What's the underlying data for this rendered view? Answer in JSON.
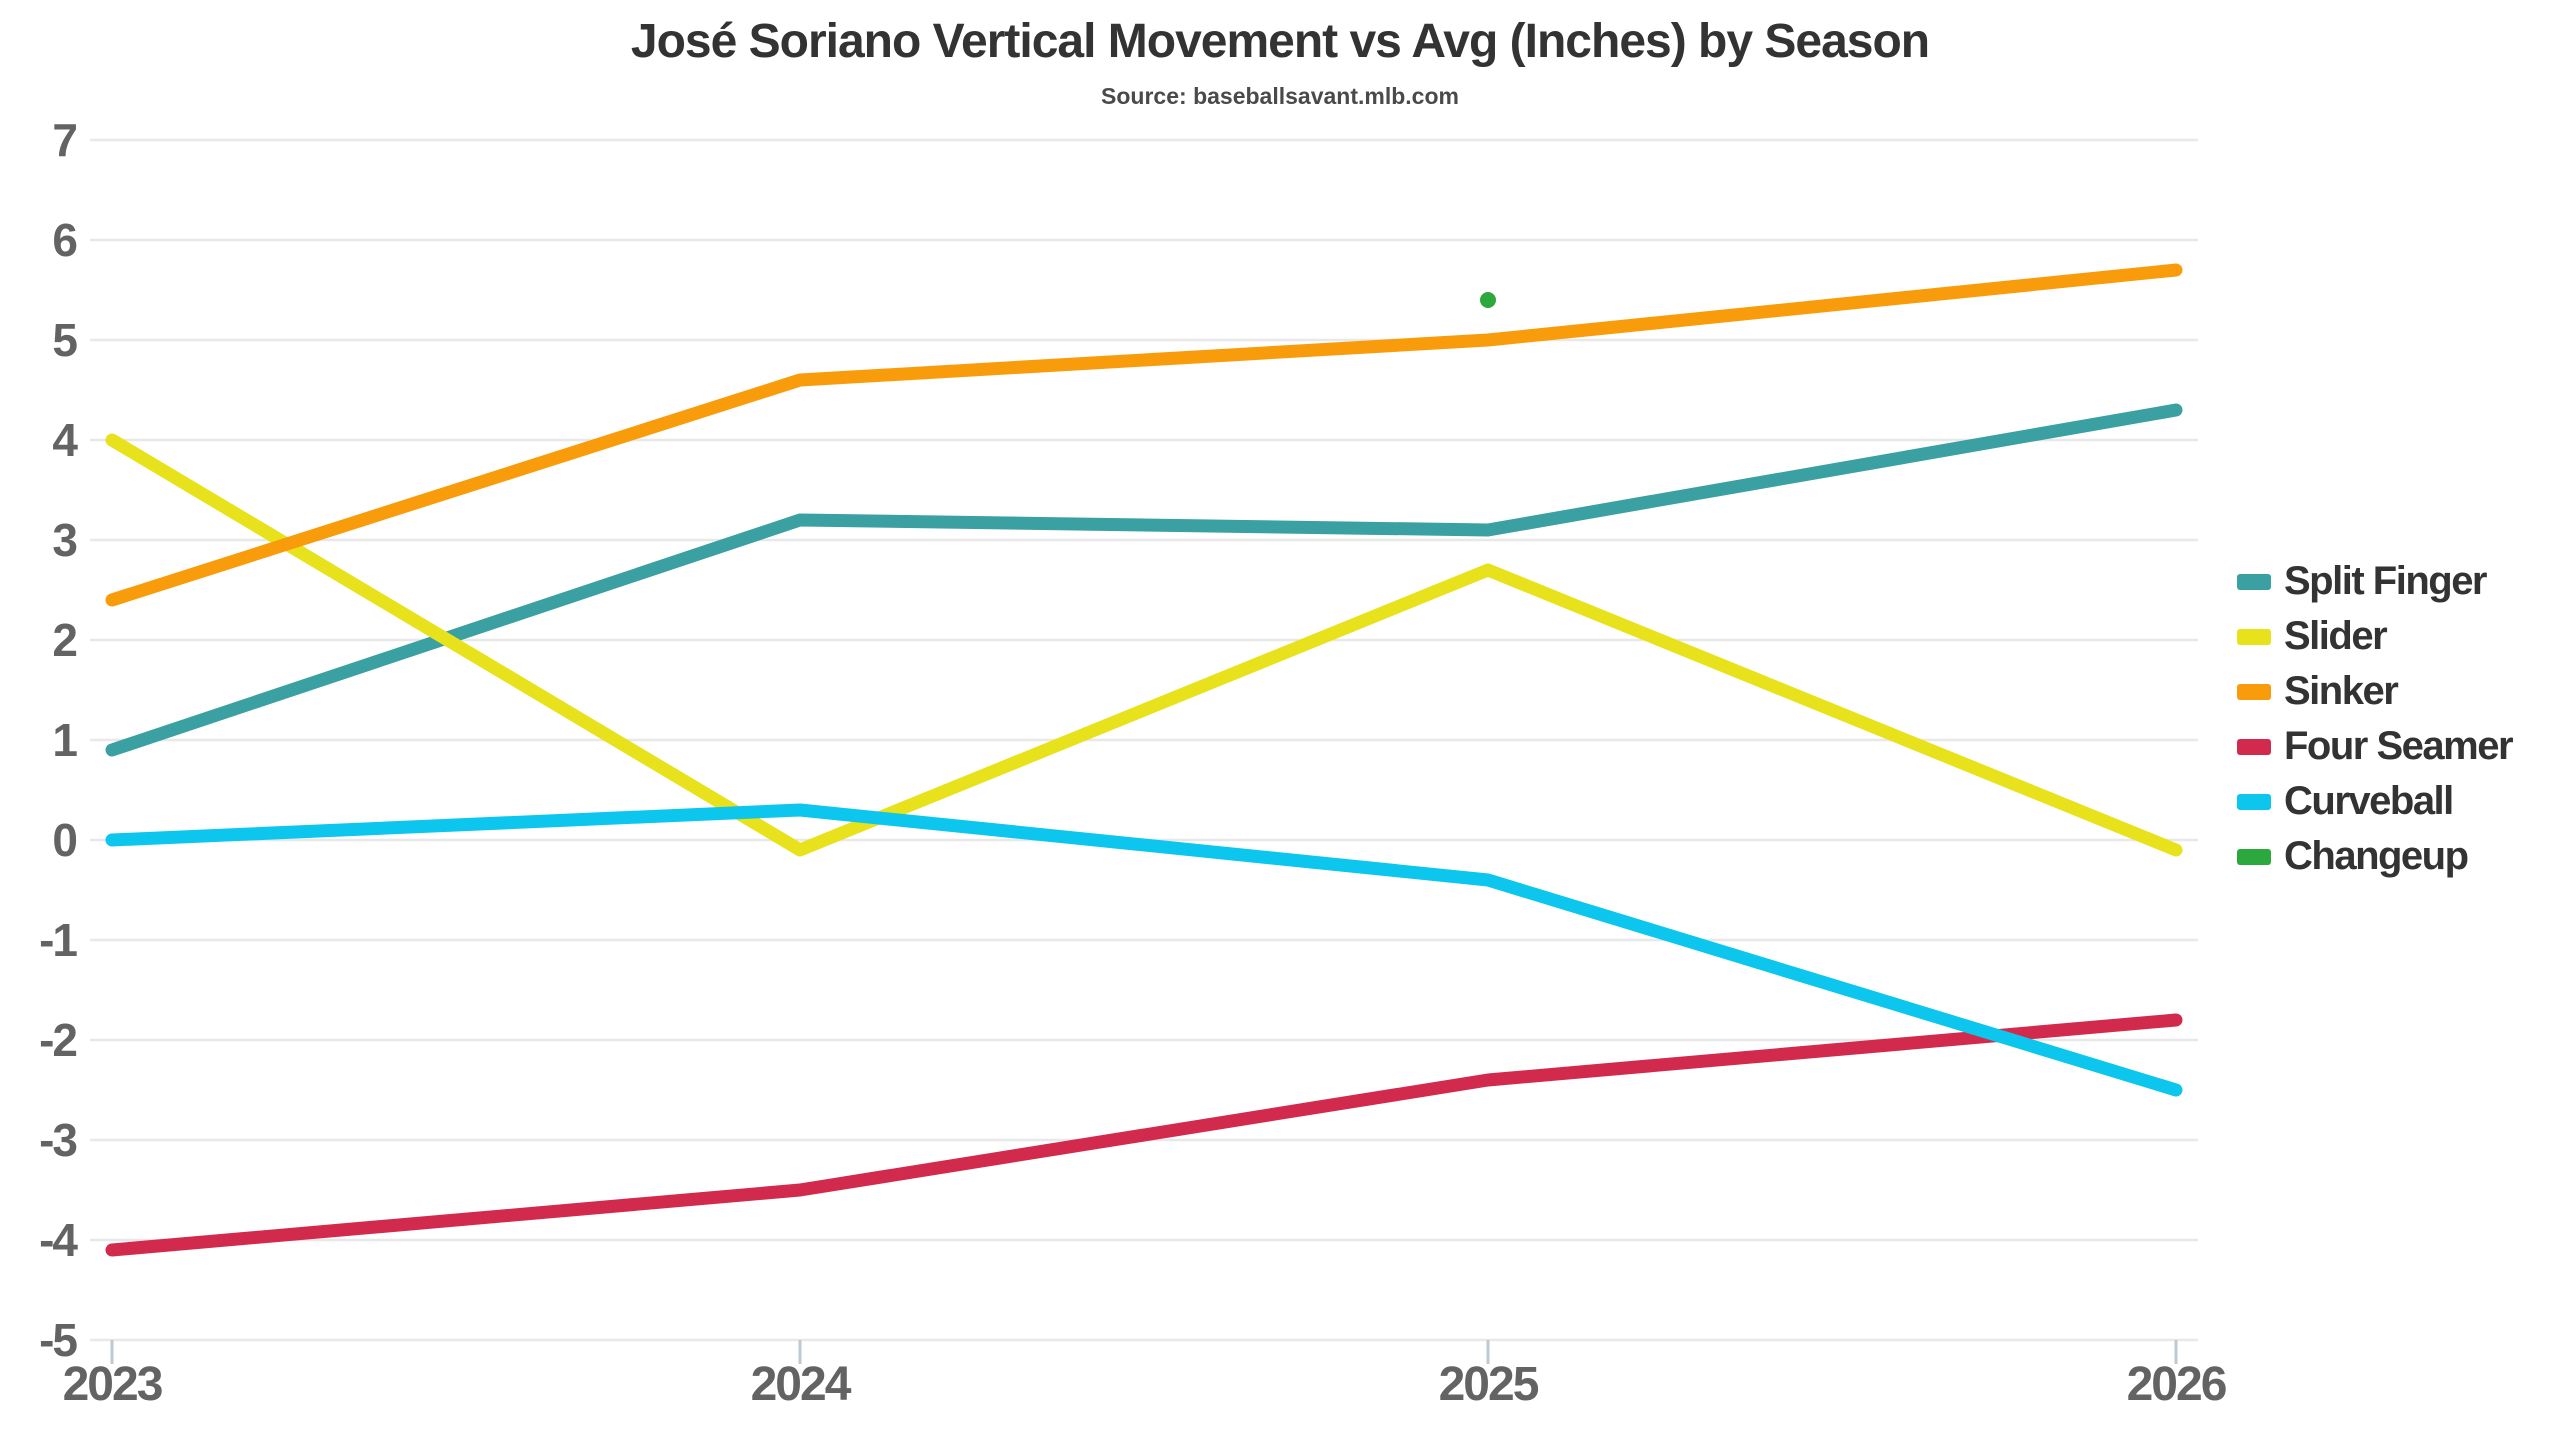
{
  "chart_data": {
    "type": "line",
    "title": "José Soriano Vertical Movement vs Avg (Inches) by Season",
    "subtitle": "Source: baseballsavant.mlb.com",
    "xlabel": "",
    "ylabel": "",
    "categories": [
      "2023",
      "2024",
      "2025",
      "2026"
    ],
    "ylim": [
      -5,
      7
    ],
    "yticks": [
      7,
      6,
      5,
      4,
      3,
      2,
      1,
      0,
      -1,
      -2,
      -3,
      -4,
      -5
    ],
    "grid": true,
    "legend_position": "right",
    "background_color": "#ffffff",
    "gridline_color": "#e8e8e8",
    "tick_mark_color": "#b9c9d9",
    "tick_label_color": "#636363",
    "title_color": "#333333",
    "series": [
      {
        "name": "Split Finger",
        "color": "#3AA0A2",
        "values": [
          0.9,
          3.2,
          3.1,
          4.3
        ]
      },
      {
        "name": "Slider",
        "color": "#E7E21C",
        "values": [
          4.0,
          -0.1,
          2.7,
          -0.1
        ]
      },
      {
        "name": "Sinker",
        "color": "#F99C0B",
        "values": [
          2.4,
          4.6,
          5.0,
          5.7
        ]
      },
      {
        "name": "Four Seamer",
        "color": "#D22A4D",
        "values": [
          -4.1,
          -3.5,
          -2.4,
          -1.8
        ]
      },
      {
        "name": "Curveball",
        "color": "#0CC6EE",
        "values": [
          0.0,
          0.3,
          -0.4,
          -2.5
        ]
      },
      {
        "name": "Changeup",
        "color": "#2CA83C",
        "values": [
          null,
          null,
          5.4,
          null
        ],
        "marker_only": true
      }
    ]
  }
}
